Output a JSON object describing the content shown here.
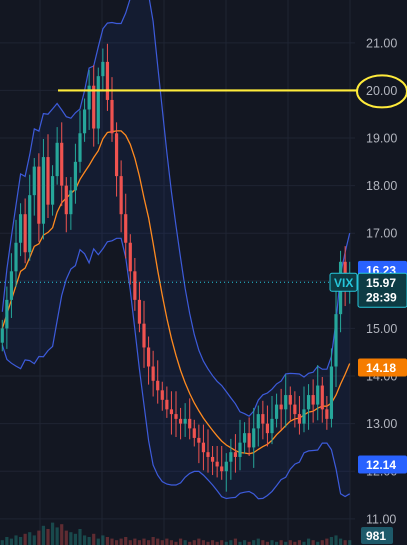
{
  "colors": {
    "background": "#131722",
    "grid": "#1f2433",
    "up": "#26a69a",
    "down": "#ef5350",
    "bollinger_band": "#3d5bdb",
    "bollinger_fill": "rgba(41,98,255,0.07)",
    "moving_average": "#ff8a1f",
    "horizontal_line": "#ffeb3b",
    "highlight_circle": "#ffeb3b",
    "current_price": "#26c6da",
    "tag_upper": "#2962ff",
    "tag_middle": "#f57c00",
    "tag_lower": "#2962ff",
    "axis_text": "#b2b5be"
  },
  "chart_data": {
    "type": "candlestick",
    "symbol": "VIX",
    "y_axis": {
      "ticks": [
        "11.00",
        "12.00",
        "13.00",
        "14.00",
        "15.00",
        "16.00",
        "17.00",
        "18.00",
        "19.00",
        "20.00",
        "21.00"
      ],
      "range": [
        10.45,
        21.9
      ]
    },
    "horizontal_line": {
      "value": 20.0,
      "label": "20.00"
    },
    "tags": {
      "upper_band": "16.23",
      "symbol": "VIX",
      "current_price": "15.97",
      "countdown": "28:39",
      "moving_average": "14.18",
      "lower_band": "12.14",
      "volume": "981"
    },
    "current_price_value": 15.97,
    "grid": true,
    "indicators": [
      "bollinger_bands",
      "moving_average"
    ],
    "closes": [
      15.0,
      15.6,
      16.2,
      16.8,
      17.4,
      16.6,
      17.8,
      18.4,
      17.2,
      18.6,
      17.6,
      18.2,
      18.9,
      18.0,
      17.4,
      17.9,
      18.5,
      19.1,
      19.6,
      20.1,
      19.2,
      20.3,
      20.6,
      19.8,
      19.1,
      18.2,
      17.4,
      16.8,
      16.2,
      15.6,
      15.1,
      14.6,
      14.2,
      13.9,
      13.7,
      13.5,
      13.3,
      13.2,
      13.1,
      13.0,
      13.1,
      12.9,
      12.7,
      12.6,
      12.4,
      12.3,
      12.2,
      12.1,
      12.0,
      12.2,
      12.4,
      12.3,
      12.6,
      12.8,
      12.5,
      12.9,
      13.2,
      13.0,
      12.8,
      13.1,
      13.4,
      13.3,
      13.6,
      13.4,
      13.2,
      13.0,
      13.3,
      13.6,
      13.4,
      13.8,
      13.3,
      13.1,
      14.2,
      15.3,
      16.4,
      15.8,
      15.97
    ],
    "volume_bars": [
      3,
      5,
      4,
      6,
      5,
      7,
      8,
      6,
      9,
      12,
      10,
      14,
      11,
      13,
      9,
      8,
      7,
      10,
      6,
      5,
      7,
      4,
      6,
      5,
      4,
      3,
      4,
      5,
      3,
      4,
      3,
      4,
      3,
      5,
      4,
      3,
      4,
      3,
      2,
      4,
      3,
      2,
      3,
      4,
      3,
      2,
      3,
      2,
      3,
      2,
      3,
      4,
      2,
      3,
      2,
      3,
      4,
      3,
      2,
      3,
      2,
      3,
      2,
      3,
      2,
      3,
      2,
      4,
      3,
      2,
      3,
      4,
      5,
      6,
      4,
      3,
      3
    ]
  }
}
